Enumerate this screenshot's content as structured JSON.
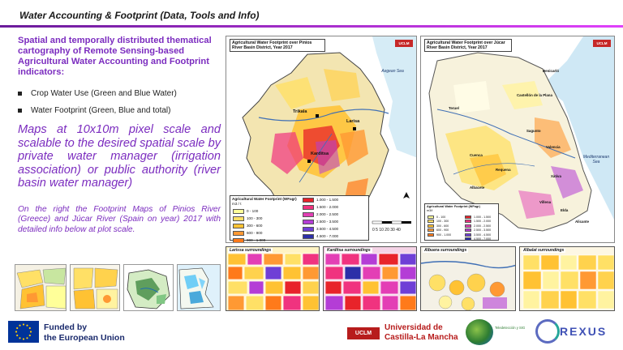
{
  "title": "Water Accounting & Footprint (Data, Tools and Info)",
  "left": {
    "heading": "Spatial and temporally distributed thematical cartography of Remote Sensing-based Agricultural Water Accounting and Footprint indicators:",
    "bullets": [
      "Crop Water Use (Green and Blue Water)",
      "Water Footprint (Green, Blue and total)"
    ],
    "big_statement": "Maps at 10x10m pixel scale and scalable to the desired spatial scale by private water manager (irrigation association) or public authority (river basin water manager)",
    "note": "On the right the Footprint Maps of Pinios River (Greece) and Júcar River (Spain on year) 2017 with detailed info below at plot scale."
  },
  "maps": {
    "pinios": {
      "title": "Agricultural Water Footprint over Pinios River Basin District, Year 2017",
      "logo": "UCLM",
      "sea": "Aegean Sea",
      "cities": [
        "Trikala",
        "Larisa",
        "Karditsa"
      ],
      "legend_title": "Agricultural Water Footprint (WFagr)",
      "legend_unit": "m3 / t",
      "legend_items": [
        {
          "label": "0 - 100",
          "color": "#ffff99"
        },
        {
          "label": "100 - 300",
          "color": "#ffe066"
        },
        {
          "label": "300 - 600",
          "color": "#ffc233"
        },
        {
          "label": "600 - 900",
          "color": "#ff9933"
        },
        {
          "label": "900 - 1.000",
          "color": "#ff7a1a"
        },
        {
          "label": "1.000 - 1.500",
          "color": "#e8232a"
        },
        {
          "label": "1.500 - 2.000",
          "color": "#f0337f"
        },
        {
          "label": "2.000 - 2.500",
          "color": "#e33fb5"
        },
        {
          "label": "2.500 - 3.500",
          "color": "#b43dd6"
        },
        {
          "label": "3.500 - 4.500",
          "color": "#6f3fd6"
        },
        {
          "label": "4.500 - 7.000",
          "color": "#2c2fa8"
        }
      ],
      "scale": "0  5 10   20   30   40"
    },
    "jucar": {
      "title": "Agricultural Water Footprint over Júcar River Basin District, Year 2017",
      "logo": "UCLM",
      "sea": "Mediterranean Sea",
      "cities": [
        "Cuenca",
        "Albacete",
        "Valencia",
        "Alicante",
        "Castellón de la Plana",
        "Benicarló",
        "Sagunto",
        "Xàtiva",
        "Villena",
        "Elda",
        "Requena",
        "Teruel"
      ],
      "legend_title": "Agricultural Water Footprint (WFagr)",
      "legend_unit": "m3/t",
      "legend_items": [
        {
          "label": "0 - 100",
          "color": "#ffff99"
        },
        {
          "label": "100 - 300",
          "color": "#ffe066"
        },
        {
          "label": "300 - 600",
          "color": "#ffc233"
        },
        {
          "label": "600 - 900",
          "color": "#ff9933"
        },
        {
          "label": "900 - 1.000",
          "color": "#ff7a1a"
        },
        {
          "label": "1.000 - 1.500",
          "color": "#e8232a"
        },
        {
          "label": "1.500 - 2.000",
          "color": "#f0337f"
        },
        {
          "label": "2.000 - 2.500",
          "color": "#e33fb5"
        },
        {
          "label": "2.500 - 3.500",
          "color": "#b43dd6"
        },
        {
          "label": "3.500 - 4.500",
          "color": "#6f3fd6"
        },
        {
          "label": "4.500 - 7.000",
          "color": "#2c2fa8"
        }
      ]
    }
  },
  "insets": [
    {
      "label": "Larissa surroundings"
    },
    {
      "label": "Karditsa surroundings"
    },
    {
      "label": "Albuera surroundings"
    },
    {
      "label": "Albalat surroundings"
    }
  ],
  "footer": {
    "eu_text_1": "Funded by",
    "eu_text_2": "the European Union",
    "uclm_short": "UCLM",
    "uclm_text_1": "Universidad de",
    "uclm_text_2": "Castilla-La Mancha",
    "teled_text": "Teledetección y SIG",
    "rexus": "REXUS"
  },
  "colors": {
    "accent_purple": "#7b2cbf",
    "uclm_red": "#b71c1c",
    "eu_blue": "#003399"
  }
}
